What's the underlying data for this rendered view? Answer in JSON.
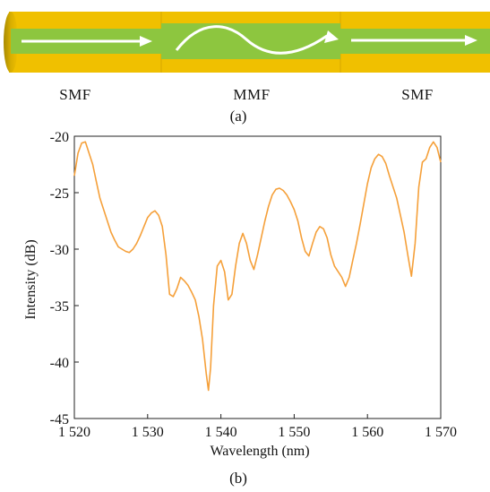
{
  "figure": {
    "labels": {
      "left": "SMF",
      "middle": "MMF",
      "right": "SMF"
    },
    "caption_a": "(a)",
    "caption_b": "(b)",
    "colors": {
      "jacket": "#f0c000",
      "core": "#8dc63f",
      "arrow": "#ffffff",
      "trace": "#f5a03a"
    }
  },
  "chart_data": {
    "type": "line",
    "title": "",
    "xlabel": "Wavelength (nm)",
    "ylabel": "Intensity (dB)",
    "xlim": [
      1520,
      1570
    ],
    "ylim": [
      -45,
      -20
    ],
    "xticks": [
      1520,
      1530,
      1540,
      1550,
      1560,
      1570
    ],
    "xtick_labels": [
      "1 520",
      "1 530",
      "1 540",
      "1 550",
      "1 560",
      "1 570"
    ],
    "yticks": [
      -45,
      -40,
      -35,
      -30,
      -25,
      -20
    ],
    "ytick_labels": [
      "-45",
      "-40",
      "-35",
      "-30",
      "-25",
      "-20"
    ],
    "grid": false,
    "series": [
      {
        "x": [
          1520.0,
          1520.5,
          1521.0,
          1521.5,
          1522.0,
          1522.5,
          1523.0,
          1523.5,
          1524.0,
          1524.5,
          1525.0,
          1525.5,
          1526.0,
          1526.5,
          1527.0,
          1527.5,
          1528.0,
          1528.5,
          1529.0,
          1529.5,
          1530.0,
          1530.5,
          1531.0,
          1531.5,
          1532.0,
          1532.5,
          1533.0,
          1533.5,
          1534.0,
          1534.5,
          1535.0,
          1535.5,
          1536.0,
          1536.5,
          1537.0,
          1537.5,
          1538.0,
          1538.3,
          1538.6,
          1539.0,
          1539.5,
          1540.0,
          1540.5,
          1541.0,
          1541.5,
          1542.0,
          1542.5,
          1543.0,
          1543.5,
          1544.0,
          1544.5,
          1545.0,
          1545.5,
          1546.0,
          1546.5,
          1547.0,
          1547.5,
          1548.0,
          1548.5,
          1549.0,
          1549.5,
          1550.0,
          1550.5,
          1551.0,
          1551.5,
          1552.0,
          1552.5,
          1553.0,
          1553.5,
          1554.0,
          1554.5,
          1555.0,
          1555.5,
          1556.0,
          1556.5,
          1557.0,
          1557.5,
          1558.0,
          1558.5,
          1559.0,
          1559.5,
          1560.0,
          1560.5,
          1561.0,
          1561.5,
          1562.0,
          1562.5,
          1563.0,
          1563.5,
          1564.0,
          1564.5,
          1565.0,
          1565.5,
          1566.0,
          1566.5,
          1567.0,
          1567.5,
          1568.0,
          1568.5,
          1569.0,
          1569.5,
          1570.0
        ],
        "y": [
          -23.5,
          -21.5,
          -20.6,
          -20.5,
          -21.5,
          -22.5,
          -24.0,
          -25.5,
          -26.5,
          -27.5,
          -28.5,
          -29.2,
          -29.8,
          -30.0,
          -30.2,
          -30.3,
          -30.0,
          -29.5,
          -28.8,
          -28.0,
          -27.2,
          -26.8,
          -26.6,
          -27.0,
          -28.0,
          -30.5,
          -34.0,
          -34.2,
          -33.5,
          -32.5,
          -32.8,
          -33.2,
          -33.8,
          -34.5,
          -36.0,
          -38.0,
          -41.0,
          -42.5,
          -40.5,
          -35.0,
          -31.5,
          -31.0,
          -32.0,
          -34.5,
          -34.0,
          -31.5,
          -29.5,
          -28.6,
          -29.5,
          -31.0,
          -31.8,
          -30.5,
          -29.0,
          -27.5,
          -26.2,
          -25.2,
          -24.7,
          -24.6,
          -24.8,
          -25.2,
          -25.8,
          -26.5,
          -27.5,
          -29.0,
          -30.2,
          -30.6,
          -29.5,
          -28.5,
          -28.0,
          -28.2,
          -29.0,
          -30.5,
          -31.5,
          -32.0,
          -32.5,
          -33.3,
          -32.5,
          -31.0,
          -29.5,
          -27.8,
          -26.0,
          -24.2,
          -22.8,
          -22.0,
          -21.6,
          -21.8,
          -22.4,
          -23.5,
          -24.5,
          -25.5,
          -27.0,
          -28.5,
          -30.5,
          -32.4,
          -29.5,
          -24.5,
          -22.3,
          -22.0,
          -21.0,
          -20.5,
          -21.0,
          -22.3
        ]
      }
    ]
  }
}
